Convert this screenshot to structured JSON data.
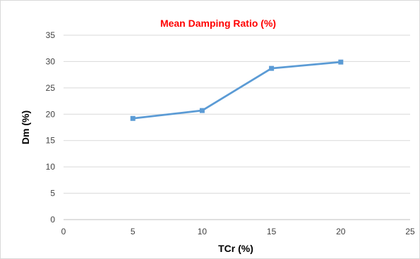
{
  "chart_data": {
    "type": "line",
    "title": "Mean Damping Ratio (%)",
    "xlabel": "TCr (%)",
    "ylabel": "Dm (%)",
    "xlim": [
      0,
      25
    ],
    "ylim": [
      0,
      35
    ],
    "x_ticks": [
      "0",
      "5",
      "10",
      "15",
      "20",
      "25"
    ],
    "y_ticks": [
      "0",
      "5",
      "10",
      "15",
      "20",
      "25",
      "30",
      "35"
    ],
    "grid": "horizontal",
    "legend": "none",
    "series": [
      {
        "x": [
          5,
          10,
          15,
          20
        ],
        "y": [
          19.2,
          20.7,
          28.7,
          29.9
        ],
        "color": "#5b9bd5",
        "marker": "square"
      }
    ],
    "colors": {
      "title": "#ff0000",
      "line": "#5b9bd5",
      "grid": "#d9d9d9"
    }
  }
}
